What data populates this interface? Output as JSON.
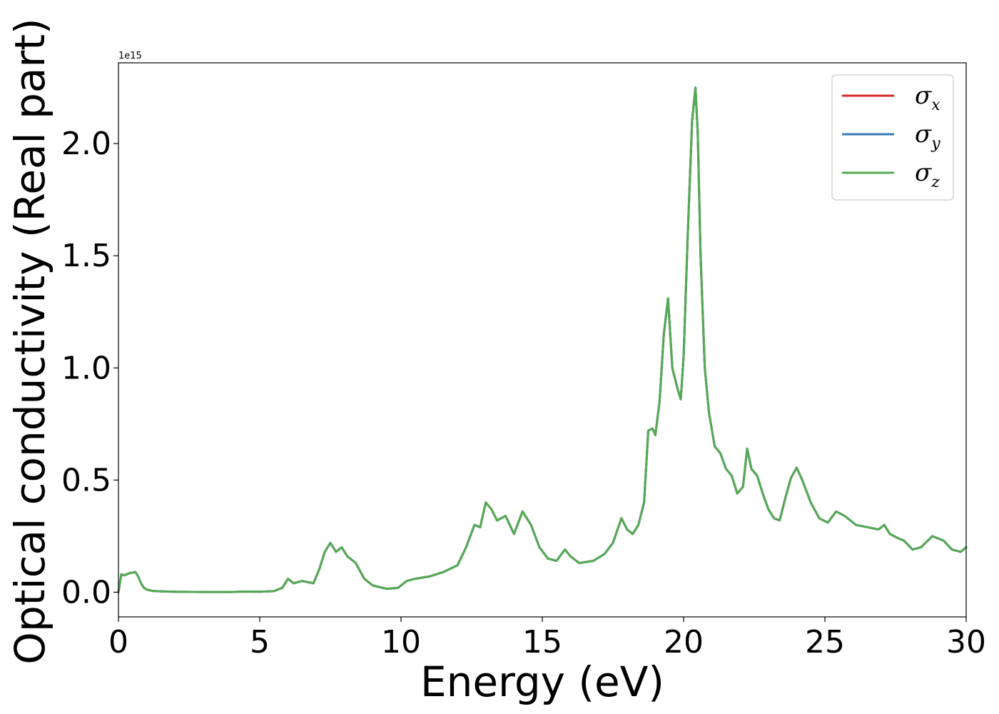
{
  "chart_data": {
    "type": "line",
    "xlabel": "Energy (eV)",
    "ylabel": "Optical conductivity (Real part)",
    "y_offset_label": "1e15",
    "xlim": [
      0,
      30
    ],
    "ylim": [
      -0.11,
      2.36
    ],
    "y_unit_scale": 1000000000000000.0,
    "x_ticks": [
      0,
      5,
      10,
      15,
      20,
      25,
      30
    ],
    "x_tick_labels": [
      "0",
      "5",
      "10",
      "15",
      "20",
      "25",
      "30"
    ],
    "y_ticks": [
      0.0,
      0.5,
      1.0,
      1.5,
      2.0
    ],
    "y_tick_labels": [
      "0.0",
      "0.5",
      "1.0",
      "1.5",
      "2.0"
    ],
    "grid": false,
    "legend_position": "top-right",
    "legend": [
      {
        "symbol": "σ",
        "subscript": "x",
        "color": "#d62728"
      },
      {
        "symbol": "σ",
        "subscript": "y",
        "color": "#3a7bb5"
      },
      {
        "symbol": "σ",
        "subscript": "z",
        "color": "#55aa55"
      }
    ],
    "x": [
      0,
      0.1,
      0.2,
      0.4,
      0.6,
      0.7,
      0.8,
      0.9,
      1.0,
      1.2,
      1.5,
      2,
      3,
      4,
      4.4,
      5,
      5.5,
      5.8,
      6.0,
      6.2,
      6.5,
      6.9,
      7.1,
      7.3,
      7.5,
      7.7,
      7.9,
      8.1,
      8.4,
      8.7,
      9.0,
      9.5,
      9.9,
      10.2,
      10.5,
      11.0,
      11.5,
      12.0,
      12.3,
      12.6,
      12.8,
      13.0,
      13.2,
      13.4,
      13.7,
      14.0,
      14.3,
      14.6,
      14.9,
      15.2,
      15.5,
      15.8,
      16.0,
      16.3,
      16.8,
      17.2,
      17.5,
      17.8,
      18.0,
      18.2,
      18.4,
      18.6,
      18.75,
      18.9,
      19.0,
      19.15,
      19.3,
      19.45,
      19.6,
      19.7,
      19.8,
      19.9,
      20.0,
      20.15,
      20.3,
      20.42,
      20.5,
      20.6,
      20.75,
      20.9,
      21.1,
      21.3,
      21.5,
      21.7,
      21.9,
      22.1,
      22.25,
      22.4,
      22.6,
      22.8,
      23.0,
      23.2,
      23.4,
      23.6,
      23.8,
      24.0,
      24.2,
      24.5,
      24.8,
      25.1,
      25.4,
      25.7,
      26.1,
      26.5,
      26.9,
      27.1,
      27.3,
      27.6,
      27.8,
      28.1,
      28.4,
      28.8,
      29.2,
      29.5,
      29.8,
      30.0
    ],
    "series": [
      {
        "name": "σx",
        "color": "#d62728",
        "values": [
          0.0,
          0.08,
          0.075,
          0.085,
          0.09,
          0.07,
          0.04,
          0.02,
          0.012,
          0.006,
          0.004,
          0.002,
          0.001,
          0.001,
          0.003,
          0.002,
          0.005,
          0.02,
          0.06,
          0.04,
          0.05,
          0.04,
          0.1,
          0.18,
          0.22,
          0.18,
          0.2,
          0.16,
          0.13,
          0.06,
          0.03,
          0.015,
          0.02,
          0.05,
          0.06,
          0.07,
          0.09,
          0.12,
          0.2,
          0.3,
          0.29,
          0.4,
          0.37,
          0.32,
          0.34,
          0.26,
          0.36,
          0.3,
          0.2,
          0.15,
          0.14,
          0.19,
          0.16,
          0.13,
          0.14,
          0.17,
          0.22,
          0.33,
          0.28,
          0.26,
          0.3,
          0.4,
          0.72,
          0.73,
          0.7,
          0.85,
          1.15,
          1.31,
          1.0,
          0.95,
          0.9,
          0.86,
          1.05,
          1.6,
          2.1,
          2.25,
          2.05,
          1.5,
          1.0,
          0.8,
          0.65,
          0.62,
          0.55,
          0.52,
          0.44,
          0.47,
          0.64,
          0.55,
          0.52,
          0.44,
          0.37,
          0.33,
          0.32,
          0.42,
          0.51,
          0.555,
          0.5,
          0.4,
          0.33,
          0.31,
          0.36,
          0.34,
          0.3,
          0.29,
          0.28,
          0.3,
          0.26,
          0.24,
          0.23,
          0.19,
          0.2,
          0.25,
          0.23,
          0.19,
          0.18,
          0.2
        ]
      },
      {
        "name": "σy",
        "color": "#3a7bb5",
        "values": [
          0.0,
          0.08,
          0.075,
          0.085,
          0.09,
          0.07,
          0.04,
          0.02,
          0.012,
          0.006,
          0.004,
          0.002,
          0.001,
          0.001,
          0.003,
          0.002,
          0.005,
          0.02,
          0.06,
          0.04,
          0.05,
          0.04,
          0.1,
          0.18,
          0.22,
          0.18,
          0.2,
          0.16,
          0.13,
          0.06,
          0.03,
          0.015,
          0.02,
          0.05,
          0.06,
          0.07,
          0.09,
          0.12,
          0.2,
          0.3,
          0.29,
          0.4,
          0.37,
          0.32,
          0.34,
          0.26,
          0.36,
          0.3,
          0.2,
          0.15,
          0.14,
          0.19,
          0.16,
          0.13,
          0.14,
          0.17,
          0.22,
          0.33,
          0.28,
          0.26,
          0.3,
          0.4,
          0.72,
          0.73,
          0.7,
          0.85,
          1.15,
          1.31,
          1.0,
          0.95,
          0.9,
          0.86,
          1.05,
          1.6,
          2.1,
          2.25,
          2.05,
          1.5,
          1.0,
          0.8,
          0.65,
          0.62,
          0.55,
          0.52,
          0.44,
          0.47,
          0.64,
          0.55,
          0.52,
          0.44,
          0.37,
          0.33,
          0.32,
          0.42,
          0.51,
          0.555,
          0.5,
          0.4,
          0.33,
          0.31,
          0.36,
          0.34,
          0.3,
          0.29,
          0.28,
          0.3,
          0.26,
          0.24,
          0.23,
          0.19,
          0.2,
          0.25,
          0.23,
          0.19,
          0.18,
          0.2
        ]
      },
      {
        "name": "σz",
        "color": "#55aa55",
        "values": [
          0.0,
          0.08,
          0.075,
          0.085,
          0.09,
          0.07,
          0.04,
          0.02,
          0.012,
          0.006,
          0.004,
          0.002,
          0.001,
          0.001,
          0.003,
          0.002,
          0.005,
          0.02,
          0.06,
          0.04,
          0.05,
          0.04,
          0.1,
          0.18,
          0.22,
          0.18,
          0.2,
          0.16,
          0.13,
          0.06,
          0.03,
          0.015,
          0.02,
          0.05,
          0.06,
          0.07,
          0.09,
          0.12,
          0.2,
          0.3,
          0.29,
          0.4,
          0.37,
          0.32,
          0.34,
          0.26,
          0.36,
          0.3,
          0.2,
          0.15,
          0.14,
          0.19,
          0.16,
          0.13,
          0.14,
          0.17,
          0.22,
          0.33,
          0.28,
          0.26,
          0.3,
          0.4,
          0.72,
          0.73,
          0.7,
          0.85,
          1.15,
          1.31,
          1.0,
          0.95,
          0.9,
          0.86,
          1.05,
          1.6,
          2.1,
          2.25,
          2.05,
          1.5,
          1.0,
          0.8,
          0.65,
          0.62,
          0.55,
          0.52,
          0.44,
          0.47,
          0.64,
          0.55,
          0.52,
          0.44,
          0.37,
          0.33,
          0.32,
          0.42,
          0.51,
          0.555,
          0.5,
          0.4,
          0.33,
          0.31,
          0.36,
          0.34,
          0.3,
          0.29,
          0.28,
          0.3,
          0.26,
          0.24,
          0.23,
          0.19,
          0.2,
          0.25,
          0.23,
          0.19,
          0.18,
          0.2
        ]
      }
    ]
  }
}
